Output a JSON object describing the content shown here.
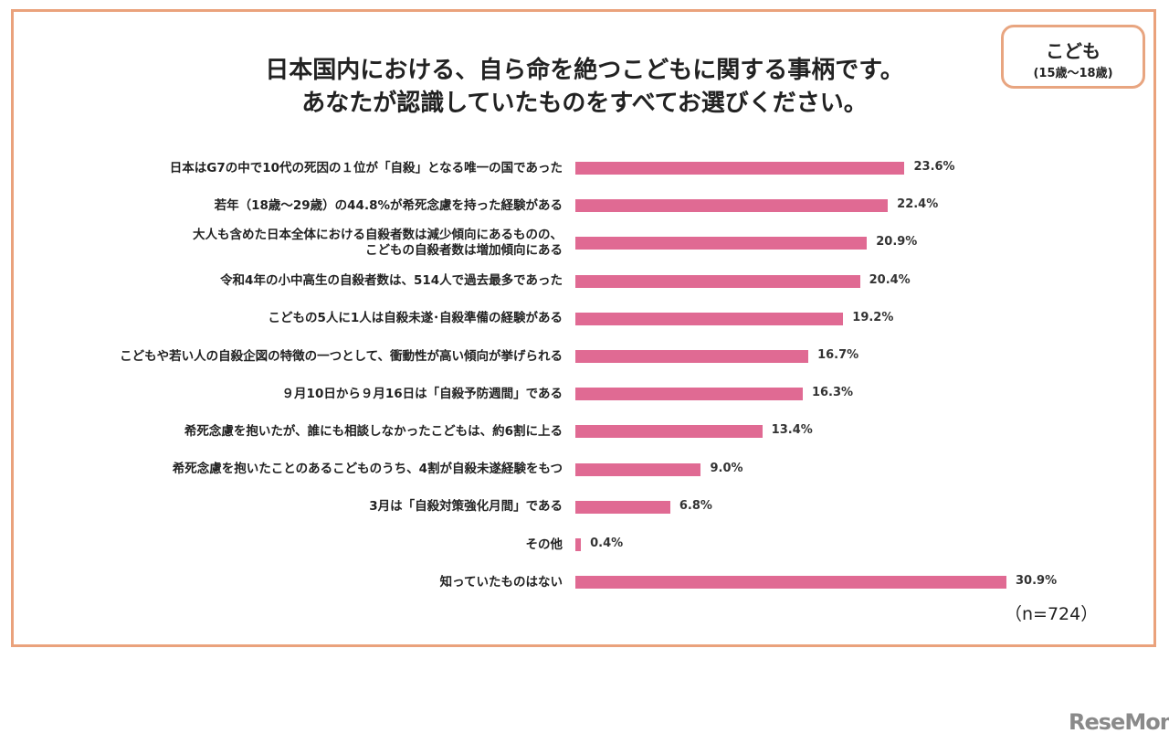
{
  "title_line1": "日本国内における、自ら命を絶つこどもに関する事柄です。",
  "title_line2": "あなたが認識していたものをすべてお選びください。",
  "badge": {
    "main": "こども",
    "sub": "(15歳～18歳)"
  },
  "sample_size": "（n=724）",
  "watermark": "ReseMom",
  "chart_data": {
    "type": "bar",
    "orientation": "horizontal",
    "color": "#e06a93",
    "unit": "%",
    "categories": [
      "日本はG7の中で10代の死因の１位が「自殺」となる唯一の国であった",
      "若年（18歳～29歳）の44.8%が希死念慮を持った経験がある",
      "大人も含めた日本全体における自殺者数は減少傾向にあるものの、\nこどもの自殺者数は増加傾向にある",
      "令和4年の小中高生の自殺者数は、514人で過去最多であった",
      "こどもの5人に1人は自殺未遂･自殺準備の経験がある",
      "こどもや若い人の自殺企図の特徴の一つとして、衝動性が高い傾向が挙げられる",
      "９月10日から９月16日は「自殺予防週間」である",
      "希死念慮を抱いたが、誰にも相談しなかったこどもは、約6割に上る",
      "希死念慮を抱いたことのあるこどものうち、4割が自殺未遂経験をもつ",
      "3月は「自殺対策強化月間」である",
      "その他",
      "知っていたものはない"
    ],
    "values": [
      23.6,
      22.4,
      20.9,
      20.4,
      19.2,
      16.7,
      16.3,
      13.4,
      9.0,
      6.8,
      0.4,
      30.9
    ],
    "value_labels": [
      "23.6%",
      "22.4%",
      "20.9%",
      "20.4%",
      "19.2%",
      "16.7%",
      "16.3%",
      "13.4%",
      "9.0%",
      "6.8%",
      "0.4%",
      "30.9%"
    ]
  }
}
